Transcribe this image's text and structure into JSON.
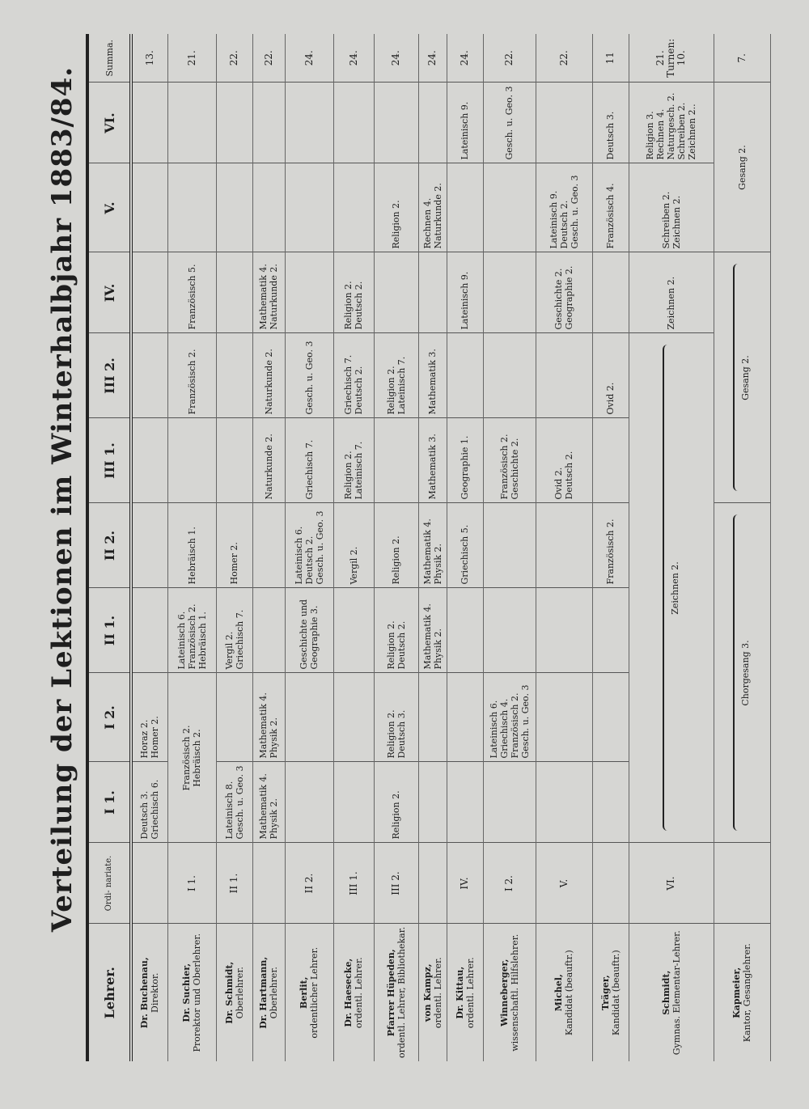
{
  "title": "Verteilung der Lektionen im Winterhalbjahr 1883/84.",
  "headers": [
    "Lehrer.",
    "Ordi- nariate.",
    "I 1.",
    "I 2.",
    "II 1.",
    "II 2.",
    "III 1.",
    "III 2.",
    "IV.",
    "V.",
    "VI.",
    "Summa."
  ],
  "rows": [
    {
      "name": "Dr. Buchenau,",
      "role": "Direktor.",
      "ord": "",
      "summa": [
        "13."
      ],
      "cells": [
        {
          "lines": [
            "Deutsch 3.",
            "Griechisch 6."
          ]
        },
        {
          "lines": [
            "Horaz 2.",
            "Homer 2."
          ]
        },
        null,
        null,
        null,
        null,
        null,
        null,
        null
      ]
    },
    {
      "name": "Dr. Suchier,",
      "role": "Prorektor und Oberlehrer.",
      "ord": "I 1.",
      "summa": [
        "21."
      ],
      "cells": [
        {
          "span": 2,
          "brace": false,
          "lines": [
            "Französisch 2.",
            "Hebräisch 2."
          ]
        },
        {
          "lines": [
            "Lateinisch 6.",
            "Französisch 2.",
            "Hebräisch 1."
          ]
        },
        {
          "lines": [
            "Hebräisch 1."
          ]
        },
        null,
        {
          "lines": [
            "Französisch 2."
          ]
        },
        {
          "lines": [
            "Französisch 5."
          ]
        },
        null,
        null
      ]
    },
    {
      "name": "Dr. Schmidt,",
      "role": "Oberlehrer.",
      "ord": "II 1.",
      "summa": [
        "22."
      ],
      "cells": [
        {
          "lines": [
            "Lateinisch 8.",
            "Gesch. u. Geo. 3"
          ]
        },
        null,
        {
          "lines": [
            "Vergil 2.",
            "Griechisch 7."
          ]
        },
        {
          "lines": [
            "Homer 2."
          ]
        },
        null,
        null,
        null,
        null,
        null
      ]
    },
    {
      "name": "Dr. Hartmann,",
      "role": "Oberlehrer.",
      "ord": "",
      "summa": [
        "22."
      ],
      "cells": [
        {
          "lines": [
            "Mathematik 4.",
            "Physik 2."
          ]
        },
        {
          "lines": [
            "Mathematik 4.",
            "Physik 2."
          ]
        },
        null,
        null,
        {
          "lines": [
            "Naturkunde 2."
          ]
        },
        {
          "lines": [
            "Naturkunde 2."
          ]
        },
        {
          "lines": [
            "Mathematik 4.",
            "Naturkunde 2."
          ]
        },
        null,
        null
      ]
    },
    {
      "name": "Berlit,",
      "role": "ordentlicher Lehrer.",
      "ord": "II 2.",
      "summa": [
        "24."
      ],
      "cells": [
        null,
        null,
        {
          "lines": [
            "Geschichte und",
            "Geographie 3."
          ]
        },
        {
          "lines": [
            "Lateinisch 6.",
            "Deutsch 2.",
            "Gesch. u. Geo. 3"
          ]
        },
        {
          "lines": [
            "Griechisch 7."
          ]
        },
        {
          "lines": [
            "Gesch. u. Geo. 3"
          ]
        },
        null,
        null,
        null
      ]
    },
    {
      "name": "Dr. Haesecke,",
      "role": "ordentl. Lehrer.",
      "ord": "III 1.",
      "summa": [
        "24."
      ],
      "cells": [
        null,
        null,
        null,
        {
          "lines": [
            "Vergil 2."
          ]
        },
        {
          "lines": [
            "Religion 2.",
            "Lateinisch 7."
          ]
        },
        {
          "lines": [
            "Griechisch 7.",
            "Deutsch 2."
          ]
        },
        {
          "lines": [
            "Religion 2.",
            "Deutsch 2."
          ]
        },
        null,
        null
      ]
    },
    {
      "name": "Pfarrer Hüpeden,",
      "role": "ordentl. Lehrer, Bibliothekar.",
      "ord": "III 2.",
      "summa": [
        "24."
      ],
      "cells": [
        {
          "lines": [
            "Religion 2."
          ]
        },
        {
          "lines": [
            "Religion 2.",
            "Deutsch 3."
          ]
        },
        {
          "lines": [
            "Religion 2.",
            "Deutsch 2."
          ]
        },
        {
          "lines": [
            "Religion 2."
          ]
        },
        null,
        {
          "lines": [
            "Religion 2.",
            "Lateinisch 7."
          ]
        },
        null,
        {
          "lines": [
            "Religion 2."
          ]
        },
        null
      ]
    },
    {
      "name": "von Kampz,",
      "role": "ordentl. Lehrer.",
      "ord": "",
      "summa": [
        "24."
      ],
      "cells": [
        null,
        null,
        {
          "lines": [
            "Mathematik 4.",
            "Physik 2."
          ]
        },
        {
          "lines": [
            "Mathematik 4.",
            "Physik 2."
          ]
        },
        {
          "lines": [
            "Mathematik 3."
          ]
        },
        {
          "lines": [
            "Mathematik 3."
          ]
        },
        null,
        {
          "lines": [
            "Rechnen 4.",
            "Naturkunde 2."
          ]
        },
        null
      ]
    },
    {
      "name": "Dr. Kittau,",
      "role": "ordentl. Lehrer.",
      "ord": "IV.",
      "summa": [
        "24."
      ],
      "cells": [
        null,
        null,
        null,
        {
          "lines": [
            "Griechisch 5."
          ]
        },
        {
          "lines": [
            "Geographie 1."
          ]
        },
        null,
        {
          "lines": [
            "Lateinisch 9."
          ]
        },
        null,
        {
          "lines": [
            "Lateinisch 9."
          ]
        }
      ]
    },
    {
      "name": "Winneberger,",
      "role": "wissenschaftl. Hilfslehrer.",
      "ord": "I 2.",
      "summa": [
        "22."
      ],
      "cells": [
        null,
        {
          "lines": [
            "Lateinisch 6.",
            "Griechisch 4.",
            "Französisch 2.",
            "Gesch. u. Geo. 3"
          ]
        },
        null,
        null,
        {
          "lines": [
            "Französisch 2.",
            "Geschichte 2."
          ]
        },
        null,
        null,
        null,
        {
          "lines": [
            "Gesch. u. Geo. 3"
          ]
        }
      ]
    },
    {
      "name": "Michel,",
      "role": "Kandidat (beauftr.)",
      "ord": "V.",
      "summa": [
        "22."
      ],
      "cells": [
        null,
        null,
        null,
        null,
        {
          "lines": [
            "Ovid 2.",
            "Deutsch 2."
          ]
        },
        null,
        {
          "lines": [
            "Geschichte 2.",
            "Geographie 2."
          ]
        },
        {
          "lines": [
            "Lateinisch 9.",
            "Deutsch 2.",
            "Gesch. u. Geo. 3"
          ]
        },
        null
      ]
    },
    {
      "name": "Träger,",
      "role": "Kandidat (beauftr.)",
      "ord": "",
      "summa": [
        "11"
      ],
      "cells": [
        null,
        null,
        null,
        {
          "lines": [
            "Französisch 2."
          ]
        },
        null,
        {
          "lines": [
            "Ovid 2."
          ]
        },
        null,
        {
          "lines": [
            "Französisch 4."
          ]
        },
        {
          "lines": [
            "Deutsch 3."
          ]
        }
      ]
    },
    {
      "name": "Schmidt,",
      "role": "Gymnas. Elementar-Lehrer.",
      "ord": "VI.",
      "summa": [
        "21.",
        "Turnen:",
        "10."
      ],
      "cells": [
        {
          "span": 6,
          "brace": true,
          "lines": [
            "Zeichnen 2."
          ]
        },
        {
          "lines": [
            "Zeichnen 2."
          ]
        },
        {
          "lines": [
            "Schreiben 2.",
            "Zeichnen 2."
          ]
        },
        {
          "lines": [
            "Religion 3.",
            "Rechnen 4.",
            "Naturgesch. 2.",
            "Schreiben 2.",
            "Zeichnen 2.."
          ]
        }
      ]
    },
    {
      "name": "Kapmeier,",
      "role": "Kantor, Gesanglehrer.",
      "ord": "",
      "summa": [
        "7."
      ],
      "cells": [
        {
          "span": 4,
          "brace": true,
          "lines": [
            "Chorgesang 3."
          ]
        },
        {
          "span": 3,
          "brace": true,
          "lines": [
            "Gesang 2."
          ]
        },
        {
          "span": 2,
          "brace": false,
          "lines": [
            "Gesang 2."
          ]
        }
      ]
    }
  ]
}
